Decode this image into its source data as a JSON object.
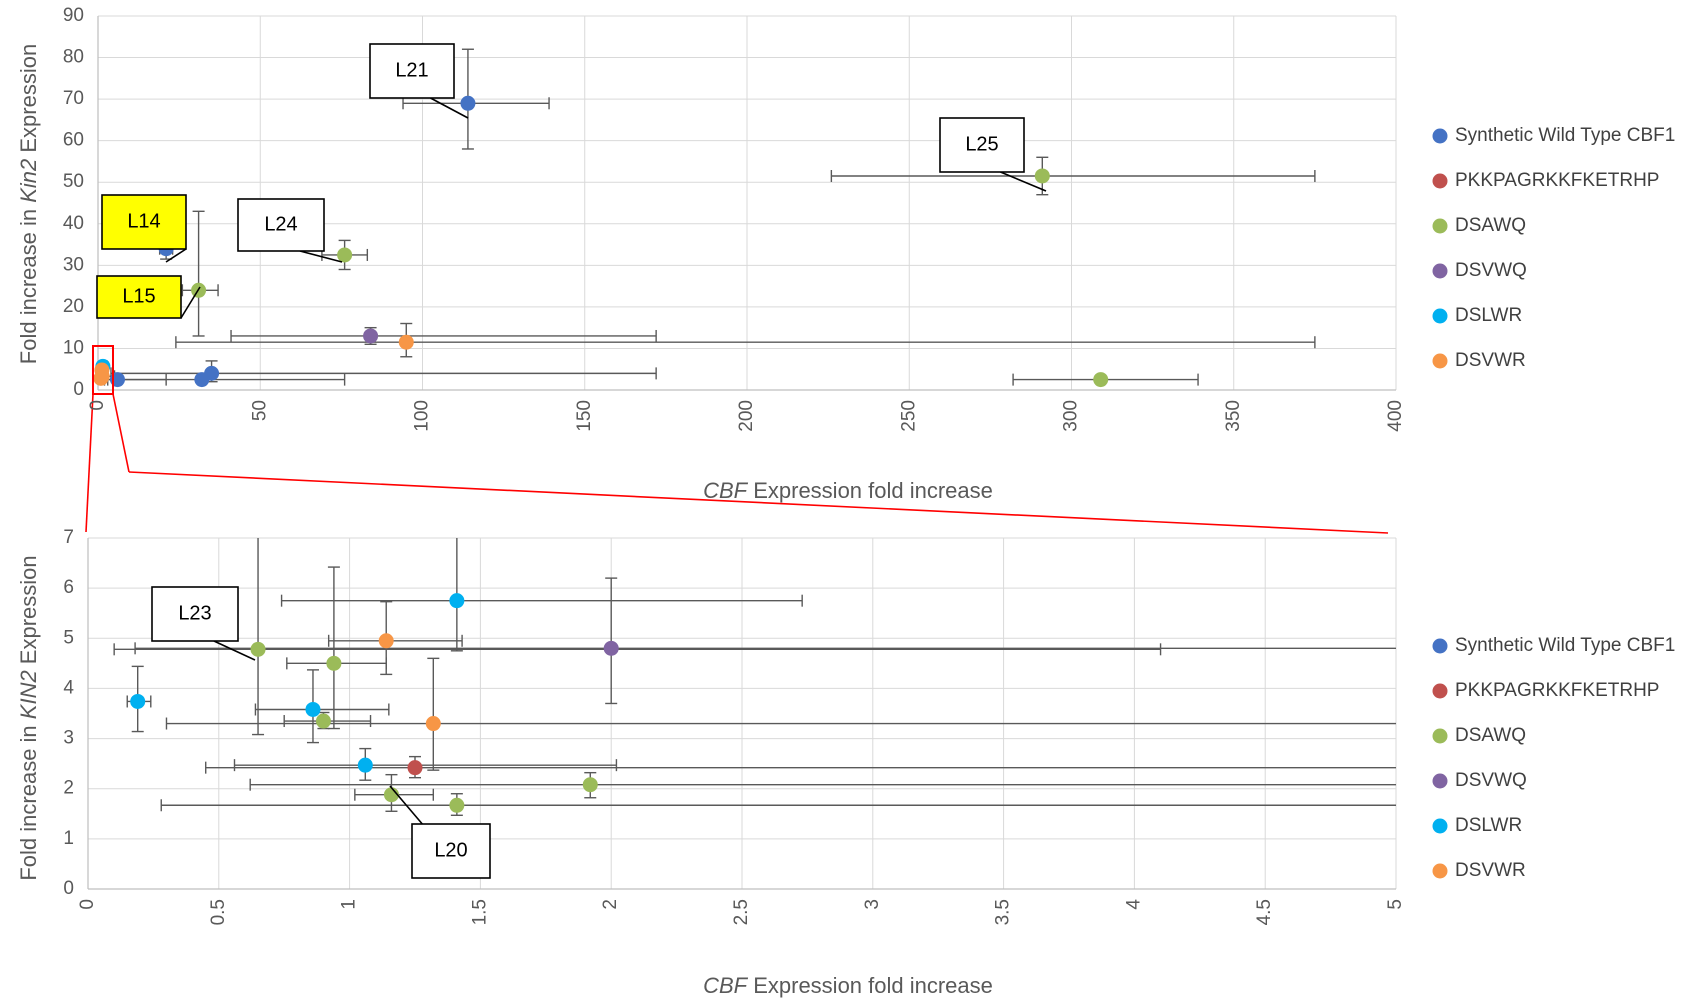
{
  "chart_data": [
    {
      "type": "scatter",
      "xlim": [
        0,
        400
      ],
      "ylim": [
        0,
        90
      ],
      "xticks": [
        "0",
        "50",
        "100",
        "150",
        "200",
        "250",
        "300",
        "350",
        "400"
      ],
      "yticks": [
        "0",
        "10",
        "20",
        "30",
        "40",
        "50",
        "60",
        "70",
        "80",
        "90"
      ],
      "xlabel": {
        "italic": "CBF",
        "rest": " Expression fold increase"
      },
      "ylabel": {
        "prefix": "Fold increase in ",
        "italic": "Kin2",
        "suffix": " Expression"
      },
      "grid": true,
      "legend_position": "right",
      "series": [
        {
          "name": "Synthetic Wild Type CBF1",
          "color": "#4472C4",
          "points": [
            {
              "x": 114,
              "y": 69,
              "xlo": 94,
              "xhi": 139,
              "ylo": 58,
              "yhi": 82
            },
            {
              "x": 21,
              "y": 34,
              "xlo": 19,
              "xhi": 23,
              "ylo": 31.5,
              "yhi": 35.5
            },
            {
              "x": 35,
              "y": 4,
              "xlo": 4,
              "xhi": 172,
              "ylo": 2,
              "yhi": 7
            },
            {
              "x": 32,
              "y": 2.5,
              "xlo": 3,
              "xhi": 76,
              "ylo": 2,
              "yhi": 3
            },
            {
              "x": 6,
              "y": 2.5,
              "xlo": 2,
              "xhi": 21,
              "ylo": 2,
              "yhi": 3
            }
          ]
        },
        {
          "name": "PKKPAGRKKFKETRHP",
          "color": "#C0504D",
          "points": []
        },
        {
          "name": "DSAWQ",
          "color": "#9BBB59",
          "points": [
            {
              "x": 291,
              "y": 51.5,
              "xlo": 226,
              "xhi": 375,
              "ylo": 47,
              "yhi": 56
            },
            {
              "x": 76,
              "y": 32.5,
              "xlo": 69,
              "xhi": 83,
              "ylo": 29,
              "yhi": 36
            },
            {
              "x": 31,
              "y": 24,
              "xlo": 26,
              "xhi": 37,
              "ylo": 13,
              "yhi": 43
            },
            {
              "x": 309,
              "y": 2.5,
              "xlo": 282,
              "xhi": 339,
              "ylo": 2,
              "yhi": 3
            }
          ]
        },
        {
          "name": "DSVWQ",
          "color": "#8064A2",
          "points": [
            {
              "x": 84,
              "y": 13,
              "xlo": 41,
              "xhi": 172,
              "ylo": 11,
              "yhi": 15
            }
          ]
        },
        {
          "name": "DSLWR",
          "color": "#00B0F0",
          "points": [
            {
              "x": 1.5,
              "y": 5.7,
              "xlo": 0.8,
              "xhi": 2.8,
              "ylo": 4.7,
              "yhi": 6.7
            }
          ]
        },
        {
          "name": "DSVWR",
          "color": "#F79646",
          "points": [
            {
              "x": 95,
              "y": 11.5,
              "xlo": 24,
              "xhi": 375,
              "ylo": 8,
              "yhi": 16
            },
            {
              "x": 1.2,
              "y": 4.8,
              "xlo": 1,
              "xhi": 1.5,
              "ylo": 4.2,
              "yhi": 5.5
            },
            {
              "x": 1.3,
              "y": 3.3,
              "xlo": 0.3,
              "xhi": 5.1,
              "ylo": 2.5,
              "yhi": 4.5
            },
            {
              "x": 0.9,
              "y": 2.8,
              "xlo": 0.5,
              "xhi": 1.5,
              "ylo": 2.3,
              "yhi": 3.2
            }
          ]
        }
      ],
      "annotations": [
        {
          "text": "L21",
          "highlight": false
        },
        {
          "text": "L25",
          "highlight": false
        },
        {
          "text": "L14",
          "highlight": true
        },
        {
          "text": "L24",
          "highlight": false
        },
        {
          "text": "L15",
          "highlight": true
        }
      ]
    },
    {
      "type": "scatter",
      "xlim": [
        0,
        5
      ],
      "ylim": [
        0,
        7
      ],
      "xticks": [
        "0",
        "0.5",
        "1",
        "1.5",
        "2",
        "2.5",
        "3",
        "3.5",
        "4",
        "4.5",
        "5"
      ],
      "yticks": [
        "0",
        "1",
        "2",
        "3",
        "4",
        "5",
        "6",
        "7"
      ],
      "xlabel": {
        "italic": "CBF",
        "rest": " Expression fold increase"
      },
      "ylabel": {
        "prefix": "Fold increase in ",
        "italic": "KIN2",
        "suffix": " Expression"
      },
      "grid": true,
      "legend_position": "right",
      "series": [
        {
          "name": "Synthetic Wild Type CBF1",
          "color": "#4472C4",
          "points": []
        },
        {
          "name": "PKKPAGRKKFKETRHP",
          "color": "#C0504D",
          "points": [
            {
              "x": 1.25,
              "y": 2.42,
              "xlo": 0.45,
              "xhi": 5.1,
              "ylo": 2.22,
              "yhi": 2.64
            }
          ]
        },
        {
          "name": "DSAWQ",
          "color": "#9BBB59",
          "points": [
            {
              "x": 0.65,
              "y": 4.78,
              "xlo": 0.1,
              "xhi": 4.1,
              "ylo": 3.08,
              "yhi": 7.0
            },
            {
              "x": 0.94,
              "y": 4.5,
              "xlo": 0.76,
              "xhi": 1.14,
              "ylo": 3.2,
              "yhi": 6.42
            },
            {
              "x": 0.9,
              "y": 3.35,
              "xlo": 0.75,
              "xhi": 1.08,
              "ylo": 3.2,
              "yhi": 3.52
            },
            {
              "x": 1.92,
              "y": 2.08,
              "xlo": 0.62,
              "xhi": 5.1,
              "ylo": 1.82,
              "yhi": 2.32
            },
            {
              "x": 1.16,
              "y": 1.88,
              "xlo": 1.02,
              "xhi": 1.32,
              "ylo": 1.55,
              "yhi": 2.28
            },
            {
              "x": 1.41,
              "y": 1.67,
              "xlo": 0.28,
              "xhi": 5.1,
              "ylo": 1.47,
              "yhi": 1.9
            }
          ]
        },
        {
          "name": "DSVWQ",
          "color": "#8064A2",
          "points": [
            {
              "x": 2.0,
              "y": 4.8,
              "xlo": 0.18,
              "xhi": 5.1,
              "ylo": 3.7,
              "yhi": 6.2
            }
          ]
        },
        {
          "name": "DSLWR",
          "color": "#00B0F0",
          "points": [
            {
              "x": 1.41,
              "y": 5.75,
              "xlo": 0.74,
              "xhi": 2.73,
              "ylo": 4.75,
              "yhi": 7.0
            },
            {
              "x": 0.19,
              "y": 3.74,
              "xlo": 0.15,
              "xhi": 0.24,
              "ylo": 3.14,
              "yhi": 4.44
            },
            {
              "x": 0.86,
              "y": 3.58,
              "xlo": 0.64,
              "xhi": 1.15,
              "ylo": 2.92,
              "yhi": 4.37
            },
            {
              "x": 1.06,
              "y": 2.47,
              "xlo": 0.56,
              "xhi": 2.02,
              "ylo": 2.17,
              "yhi": 2.8
            }
          ]
        },
        {
          "name": "DSVWR",
          "color": "#F79646",
          "points": [
            {
              "x": 1.14,
              "y": 4.95,
              "xlo": 0.92,
              "xhi": 1.43,
              "ylo": 4.28,
              "yhi": 5.73
            },
            {
              "x": 1.32,
              "y": 3.3,
              "xlo": 0.3,
              "xhi": 5.1,
              "ylo": 2.37,
              "yhi": 4.6
            }
          ]
        }
      ],
      "annotations": [
        {
          "text": "L23",
          "highlight": false
        },
        {
          "text": "L20",
          "highlight": false
        }
      ]
    }
  ]
}
